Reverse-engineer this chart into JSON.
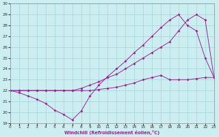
{
  "xlabel": "Windchill (Refroidissement éolien,°C)",
  "background_color": "#cceef0",
  "grid_color": "#aad8dc",
  "line_color": "#992299",
  "xlim": [
    0,
    23
  ],
  "ylim": [
    19,
    30
  ],
  "yticks": [
    19,
    20,
    21,
    22,
    23,
    24,
    25,
    26,
    27,
    28,
    29,
    30
  ],
  "xticks": [
    0,
    1,
    2,
    3,
    4,
    5,
    6,
    7,
    8,
    9,
    10,
    11,
    12,
    13,
    14,
    15,
    16,
    17,
    18,
    19,
    20,
    21,
    22,
    23
  ],
  "line1_x": [
    0,
    1,
    2,
    3,
    4,
    5,
    6,
    7,
    8,
    9,
    10,
    11,
    12,
    13,
    14,
    15,
    16,
    17,
    18,
    19,
    20,
    21,
    22,
    23
  ],
  "line1_y": [
    22,
    21.8,
    21.5,
    21.2,
    20.8,
    20.2,
    19.8,
    19.3,
    20.1,
    21.5,
    22.5,
    23.3,
    24.0,
    24.7,
    25.5,
    26.2,
    27.0,
    27.8,
    28.5,
    29.0,
    28.0,
    27.5,
    25.0,
    23.2
  ],
  "line2_x": [
    0,
    1,
    2,
    3,
    4,
    5,
    6,
    7,
    8,
    9,
    10,
    11,
    12,
    13,
    14,
    15,
    16,
    17,
    18,
    19,
    20,
    21,
    22,
    23
  ],
  "line2_y": [
    22,
    22,
    22,
    22,
    22,
    22,
    22,
    22,
    22.2,
    22.5,
    22.8,
    23.2,
    23.5,
    24.0,
    24.5,
    25.0,
    25.5,
    26.0,
    26.5,
    27.5,
    28.5,
    29.0,
    28.5,
    23.2
  ],
  "line3_x": [
    0,
    1,
    2,
    3,
    4,
    5,
    6,
    7,
    8,
    9,
    10,
    11,
    12,
    13,
    14,
    15,
    16,
    17,
    18,
    19,
    20,
    21,
    22,
    23
  ],
  "line3_y": [
    22,
    22,
    22,
    22,
    22,
    22,
    22,
    22,
    22,
    22,
    22.1,
    22.2,
    22.3,
    22.5,
    22.7,
    23.0,
    23.2,
    23.4,
    23.0,
    23.0,
    23.0,
    23.1,
    23.2,
    23.2
  ]
}
